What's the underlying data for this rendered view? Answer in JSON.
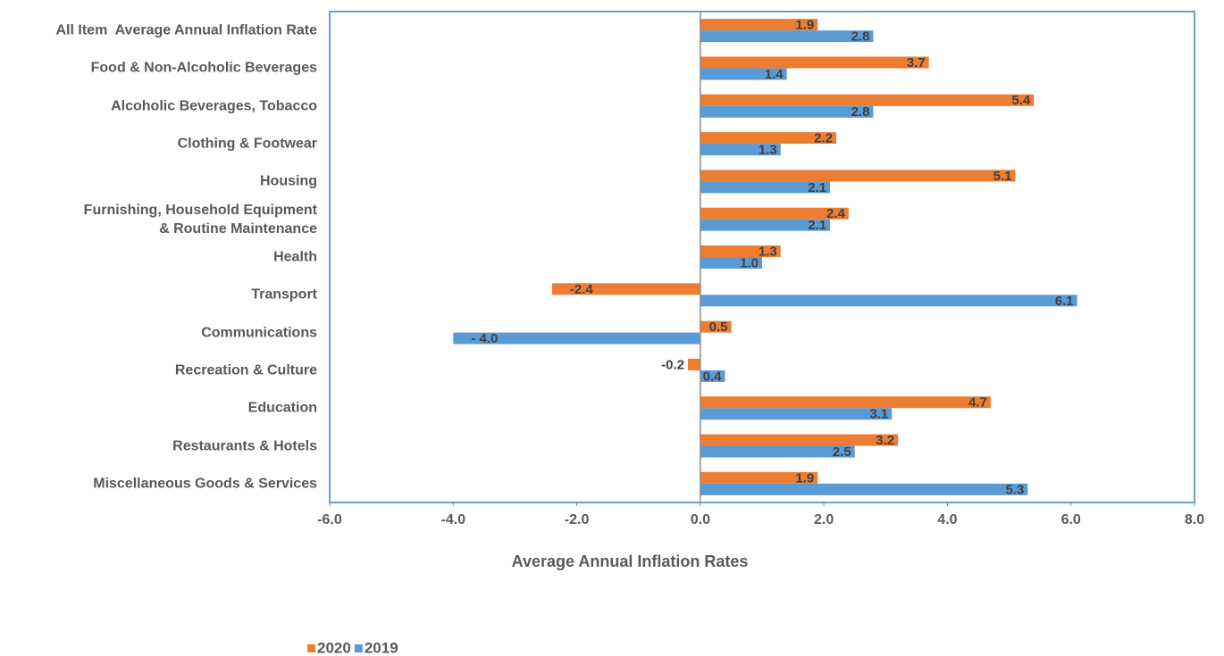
{
  "chart_data": {
    "type": "hbar",
    "xlabel": "Average Annual Inflation Rates",
    "categories": [
      "All Item  Average Annual Inflation Rate",
      "Food & Non-Alcoholic Beverages",
      "Alcoholic Beverages, Tobacco",
      "Clothing & Footwear",
      "Housing",
      "Furnishing, Household Equipment\n& Routine Maintenance",
      "Health",
      "Transport",
      "Communications",
      "Recreation & Culture",
      "Education",
      "Restaurants & Hotels",
      "Miscellaneous Goods & Services"
    ],
    "series": [
      {
        "name": "2020",
        "color": "#ed7d31",
        "values": [
          1.9,
          3.7,
          5.4,
          2.2,
          5.1,
          2.4,
          1.3,
          -2.4,
          0.5,
          -0.2,
          4.7,
          3.2,
          1.9
        ]
      },
      {
        "name": "2019",
        "color": "#5b9bd5",
        "values": [
          2.8,
          1.4,
          2.8,
          1.3,
          2.1,
          2.1,
          1.0,
          6.1,
          -4.0,
          0.4,
          3.1,
          2.5,
          5.3
        ],
        "value_labels": [
          "2.8",
          "1.4",
          "2.8",
          "1.3",
          "2.1",
          "2.1",
          "1.0",
          "6.1",
          "- 4.0",
          "0.4",
          "3.1",
          "2.5",
          "5.3"
        ]
      }
    ],
    "xlim": [
      -6,
      8
    ],
    "xticks": [
      {
        "value": -6,
        "label": "-6.0"
      },
      {
        "value": -4,
        "label": "-4.0"
      },
      {
        "value": -2,
        "label": "-2.0"
      },
      {
        "value": 0,
        "label": "0.0"
      },
      {
        "value": 2,
        "label": "2.0"
      },
      {
        "value": 4,
        "label": "4.0"
      },
      {
        "value": 6,
        "label": "6.0"
      },
      {
        "value": 8,
        "label": "8.0"
      }
    ],
    "legend": "bottom-left"
  }
}
